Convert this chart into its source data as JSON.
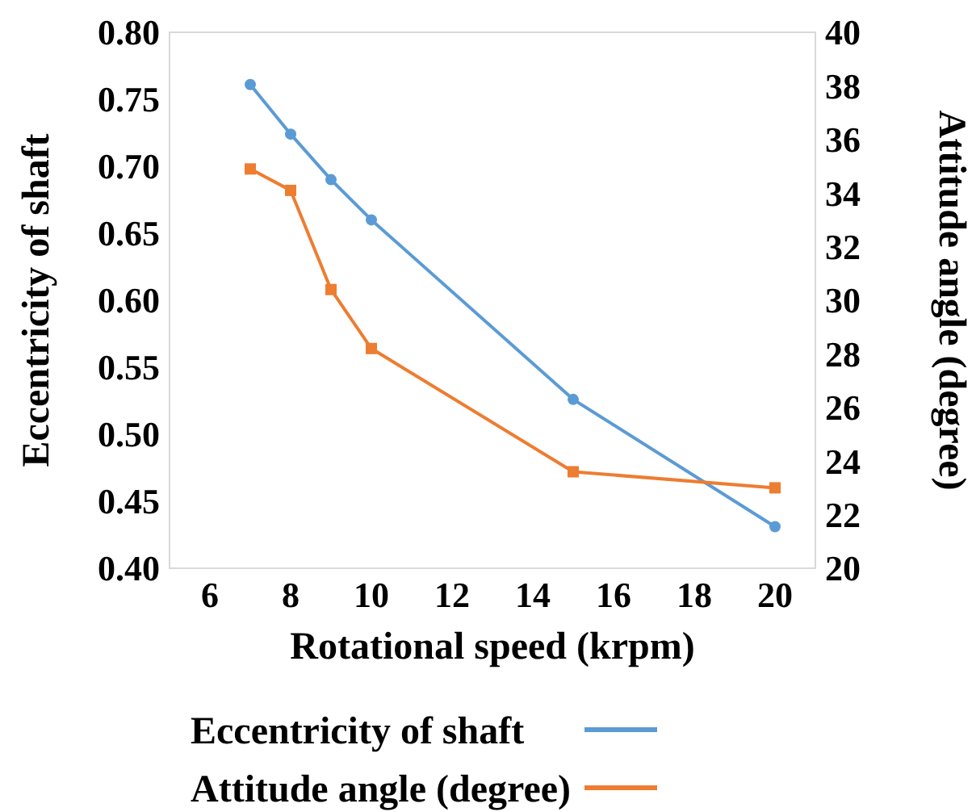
{
  "chart_data": {
    "type": "line",
    "xlabel": "Rotational speed (krpm)",
    "ylabel": "Eccentricity of shaft",
    "y2label": "Attitude angle (degree)",
    "x": [
      7,
      8,
      9,
      10,
      15,
      20
    ],
    "series": [
      {
        "name": "Eccentricity of shaft",
        "color": "#5b9bd5",
        "values": [
          0.761,
          0.724,
          0.69,
          0.66,
          0.526,
          0.431
        ],
        "marker": "circle"
      },
      {
        "name": "Attitude angle (degree)",
        "color": "#ed7d31",
        "values": [
          34.9,
          34.1,
          30.4,
          28.2,
          23.6,
          23.0
        ],
        "axis": "y2",
        "marker": "square"
      }
    ],
    "xlim": [
      5,
      21
    ],
    "xticks": [
      6,
      8,
      10,
      12,
      14,
      16,
      18,
      20
    ],
    "ylim": [
      0.4,
      0.8
    ],
    "yticks": [
      {
        "value": 0.4,
        "label": "0.40"
      },
      {
        "value": 0.45,
        "label": "0.45"
      },
      {
        "value": 0.5,
        "label": "0.50"
      },
      {
        "value": 0.55,
        "label": "0.55"
      },
      {
        "value": 0.6,
        "label": "0.60"
      },
      {
        "value": 0.65,
        "label": "0.65"
      },
      {
        "value": 0.7,
        "label": "0.70"
      },
      {
        "value": 0.75,
        "label": "0.75"
      },
      {
        "value": 0.8,
        "label": "0.80"
      }
    ],
    "y2lim": [
      20,
      40
    ],
    "y2ticks": [
      20,
      22,
      24,
      26,
      28,
      30,
      32,
      34,
      36,
      38,
      40
    ],
    "legend": "bottom",
    "grid": false
  }
}
